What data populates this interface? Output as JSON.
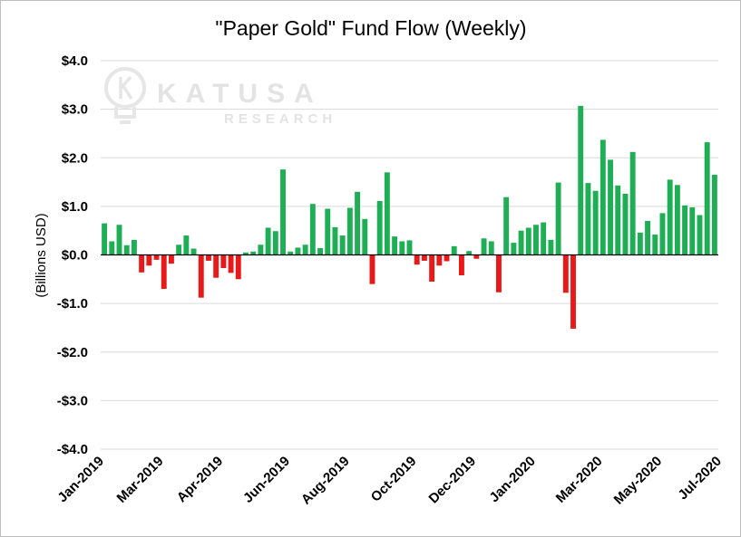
{
  "chart_data": {
    "type": "bar",
    "title": "\"Paper Gold\" Fund Flow (Weekly)",
    "ylabel": "(Billions USD)",
    "xlabel": "",
    "ylim": [
      -4,
      4
    ],
    "yticks": [
      -4,
      -3,
      -2,
      -1,
      0,
      1,
      2,
      3,
      4
    ],
    "ytick_labels": [
      "-$4.0",
      "-$3.0",
      "-$2.0",
      "-$1.0",
      "$0.0",
      "$1.0",
      "$2.0",
      "$3.0",
      "$4.0"
    ],
    "grid": true,
    "legend": "none",
    "colors": {
      "positive": "#1fae56",
      "negative": "#e81919"
    },
    "x_ticks": [
      {
        "label": "Jan-2019",
        "index": 0
      },
      {
        "label": "Mar-2019",
        "index": 8
      },
      {
        "label": "Apr-2019",
        "index": 16
      },
      {
        "label": "Jun-2019",
        "index": 25
      },
      {
        "label": "Aug-2019",
        "index": 33
      },
      {
        "label": "Oct-2019",
        "index": 42
      },
      {
        "label": "Dec-2019",
        "index": 50
      },
      {
        "label": "Jan-2020",
        "index": 58
      },
      {
        "label": "Mar-2020",
        "index": 67
      },
      {
        "label": "May-2020",
        "index": 75
      },
      {
        "label": "Jul-2020",
        "index": 83
      }
    ],
    "values": [
      0.65,
      0.28,
      0.62,
      0.2,
      0.31,
      -0.36,
      -0.22,
      -0.1,
      -0.7,
      -0.18,
      0.21,
      0.4,
      0.13,
      -0.88,
      -0.12,
      -0.47,
      -0.27,
      -0.37,
      -0.5,
      0.05,
      0.07,
      0.21,
      0.56,
      0.49,
      1.76,
      0.07,
      0.15,
      0.21,
      1.05,
      0.14,
      0.95,
      0.57,
      0.4,
      0.97,
      1.3,
      0.74,
      -0.6,
      1.11,
      1.7,
      0.38,
      0.28,
      0.3,
      -0.2,
      -0.12,
      -0.55,
      -0.22,
      -0.13,
      0.18,
      -0.42,
      0.08,
      -0.08,
      0.34,
      0.28,
      -0.77,
      1.19,
      0.25,
      0.5,
      0.56,
      0.62,
      0.67,
      0.31,
      1.49,
      -0.78,
      -1.52,
      3.07,
      1.48,
      1.32,
      2.37,
      1.96,
      1.43,
      1.26,
      2.12,
      0.46,
      0.7,
      0.42,
      0.86,
      1.55,
      1.44,
      1.02,
      0.98,
      0.82,
      2.32,
      1.65
    ]
  },
  "watermark": {
    "icon": "lightbulb-k-icon",
    "line1": "KATUSA",
    "line2": "RESEARCH"
  }
}
